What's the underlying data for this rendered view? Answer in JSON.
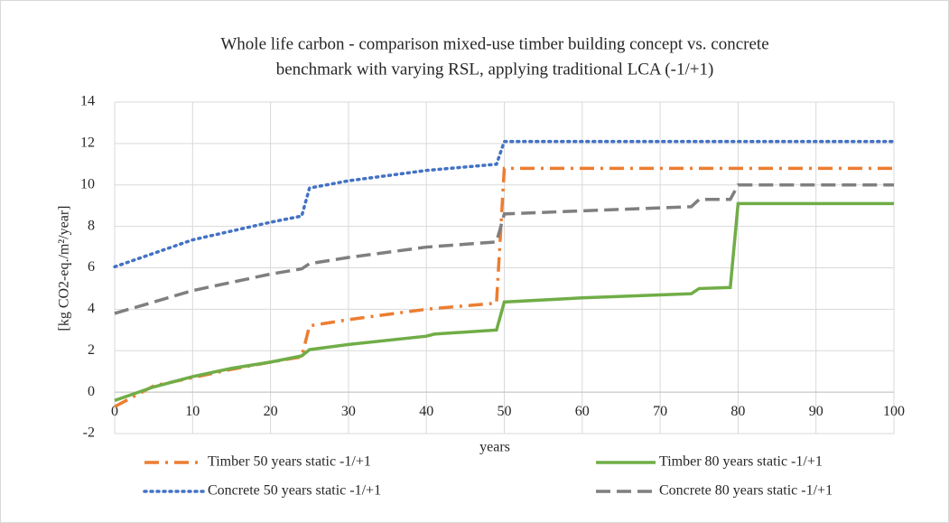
{
  "chart_data": {
    "type": "line",
    "title": [
      "Whole life carbon - comparison mixed-use timber building concept vs. concrete",
      "benchmark with varying RSL, applying traditional LCA (-1/+1)"
    ],
    "xlabel": "years",
    "ylabel": "[kg CO2-eq./m²/year]",
    "xlim": [
      0,
      100
    ],
    "xticks": [
      0,
      10,
      20,
      30,
      40,
      50,
      60,
      70,
      80,
      90,
      100
    ],
    "ylim": [
      -2,
      14
    ],
    "yticks": [
      -2,
      0,
      2,
      4,
      6,
      8,
      10,
      12,
      14
    ],
    "grid": true,
    "legend": "bottom",
    "series": [
      {
        "name": "Timber 50 years static -1/+1",
        "color": "#ed7d31",
        "dash": "dash-dot",
        "x": [
          0,
          5,
          10,
          15,
          20,
          24,
          25,
          30,
          40,
          49,
          50,
          100
        ],
        "values": [
          -0.7,
          0.3,
          0.7,
          1.1,
          1.45,
          1.7,
          3.2,
          3.5,
          4.0,
          4.3,
          10.8,
          10.8
        ]
      },
      {
        "name": "Timber 80 years static -1/+1",
        "color": "#70ad47",
        "dash": "solid",
        "x": [
          0,
          5,
          10,
          15,
          20,
          24,
          25,
          30,
          40,
          41,
          49,
          50,
          60,
          74,
          75,
          79,
          80,
          100
        ],
        "values": [
          -0.4,
          0.25,
          0.75,
          1.15,
          1.45,
          1.75,
          2.05,
          2.3,
          2.7,
          2.8,
          3.0,
          4.35,
          4.55,
          4.75,
          5.0,
          5.05,
          9.1,
          9.1
        ]
      },
      {
        "name": "Concrete 50 years static -1/+1",
        "color": "#4472c4",
        "dash": "dot",
        "x": [
          0,
          10,
          20,
          24,
          25,
          30,
          40,
          49,
          50,
          100
        ],
        "values": [
          6.05,
          7.35,
          8.2,
          8.5,
          9.85,
          10.2,
          10.7,
          11.0,
          12.1,
          12.1
        ]
      },
      {
        "name": "Concrete 80 years static -1/+1",
        "color": "#7f7f7f",
        "dash": "dash",
        "x": [
          0,
          10,
          20,
          24,
          25,
          30,
          40,
          49,
          50,
          60,
          74,
          75,
          79,
          80,
          100
        ],
        "values": [
          3.8,
          4.9,
          5.7,
          5.95,
          6.2,
          6.5,
          7.0,
          7.25,
          8.6,
          8.75,
          8.95,
          9.3,
          9.3,
          10.0,
          10.0
        ]
      }
    ]
  }
}
